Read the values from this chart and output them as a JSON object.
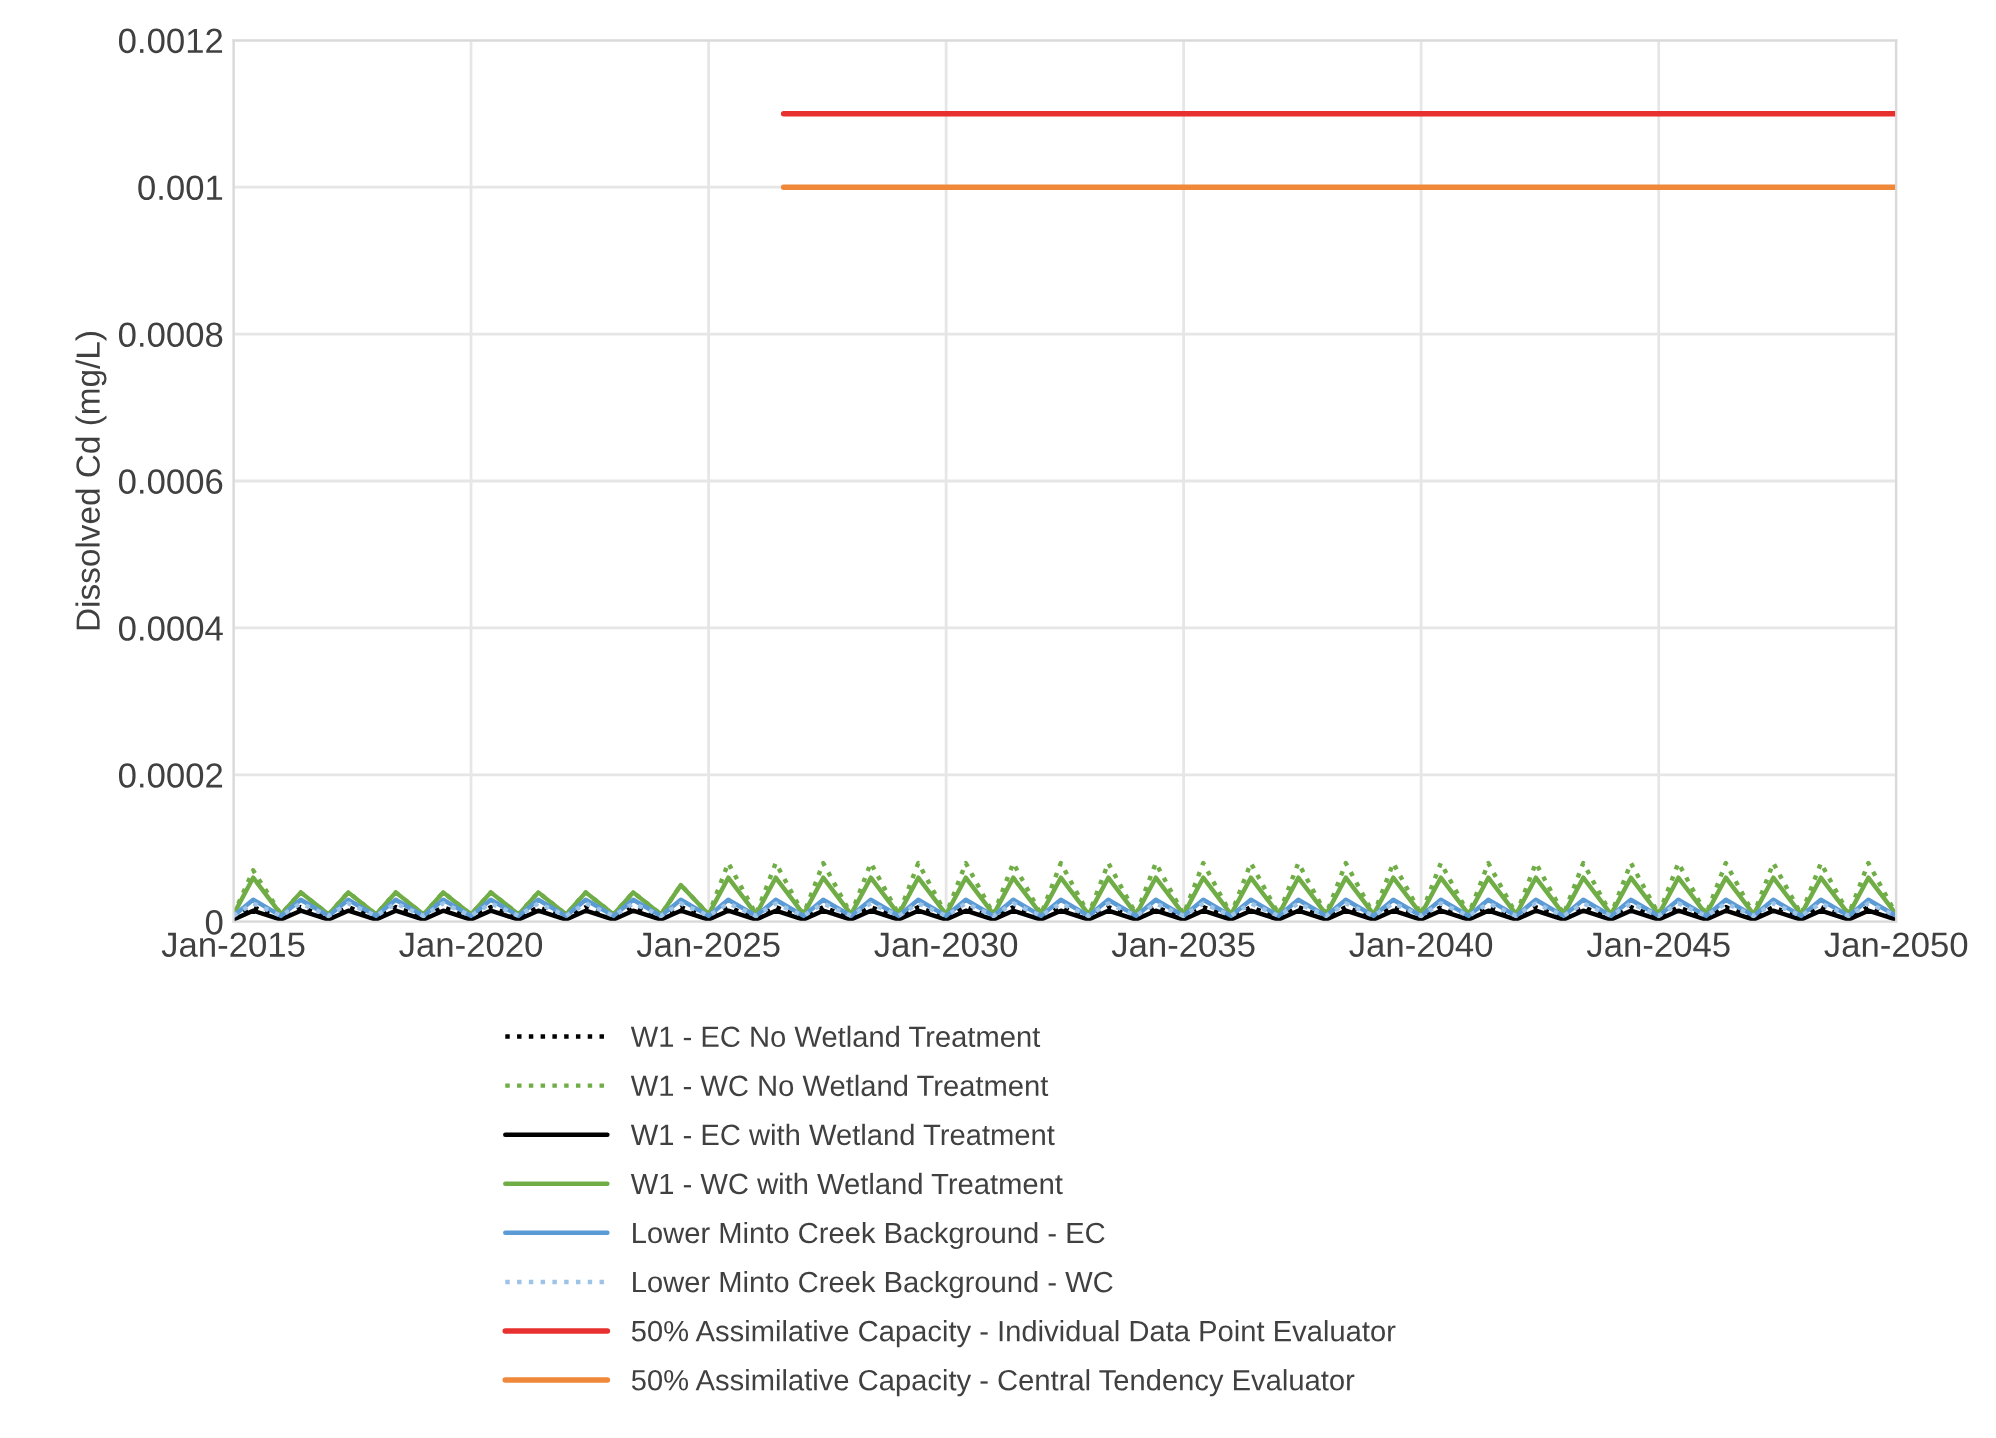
{
  "chart_data": {
    "type": "line",
    "ylabel": "Dissolved Cd (mg/L)",
    "x": [
      "2015-01",
      "2015-06",
      "2016-01",
      "2016-06",
      "2017-01",
      "2017-06",
      "2018-01",
      "2018-06",
      "2019-01",
      "2019-06",
      "2020-01",
      "2020-06",
      "2021-01",
      "2021-06",
      "2022-01",
      "2022-06",
      "2023-01",
      "2023-06",
      "2024-01",
      "2024-06",
      "2025-01",
      "2025-06",
      "2026-01",
      "2026-06",
      "2027-01",
      "2027-06",
      "2028-01",
      "2028-06",
      "2029-01",
      "2029-06",
      "2030-01",
      "2030-06",
      "2031-01",
      "2031-06",
      "2032-01",
      "2032-06",
      "2033-01",
      "2033-06",
      "2034-01",
      "2034-06",
      "2035-01",
      "2035-06",
      "2036-01",
      "2036-06",
      "2037-01",
      "2037-06",
      "2038-01",
      "2038-06",
      "2039-01",
      "2039-06",
      "2040-01",
      "2040-06",
      "2041-01",
      "2041-06",
      "2042-01",
      "2042-06",
      "2043-01",
      "2043-06",
      "2044-01",
      "2044-06",
      "2045-01",
      "2045-06",
      "2046-01",
      "2046-06",
      "2047-01",
      "2047-06",
      "2048-01",
      "2048-06",
      "2049-01",
      "2049-06",
      "2050-01"
    ],
    "series": [
      {
        "name": "W1 - EC No Wetland Treatment",
        "color": "#000000",
        "line_style": "dotted",
        "values": [
          5e-06,
          2e-05,
          5e-06,
          2e-05,
          5e-06,
          2e-05,
          5e-06,
          2e-05,
          5e-06,
          2e-05,
          5e-06,
          2e-05,
          5e-06,
          2e-05,
          5e-06,
          2e-05,
          5e-06,
          2e-05,
          5e-06,
          2e-05,
          5e-06,
          2e-05,
          5e-06,
          2e-05,
          5e-06,
          2e-05,
          5e-06,
          2e-05,
          5e-06,
          2e-05,
          5e-06,
          2e-05,
          5e-06,
          2e-05,
          5e-06,
          2e-05,
          5e-06,
          2e-05,
          5e-06,
          2e-05,
          5e-06,
          2e-05,
          5e-06,
          2e-05,
          5e-06,
          2e-05,
          5e-06,
          2e-05,
          5e-06,
          2e-05,
          5e-06,
          2e-05,
          5e-06,
          2e-05,
          5e-06,
          2e-05,
          5e-06,
          2e-05,
          5e-06,
          2e-05,
          5e-06,
          2e-05,
          5e-06,
          2e-05,
          5e-06,
          2e-05,
          5e-06,
          2e-05,
          5e-06,
          2e-05,
          5e-06
        ]
      },
      {
        "name": "W1 - WC No Wetland Treatment",
        "color": "#70ad47",
        "line_style": "dotted",
        "values": [
          1e-05,
          7e-05,
          1e-05,
          4e-05,
          1e-05,
          4e-05,
          1e-05,
          4e-05,
          1e-05,
          4e-05,
          1e-05,
          4e-05,
          1e-05,
          4e-05,
          1e-05,
          4e-05,
          1e-05,
          4e-05,
          1e-05,
          5e-05,
          1e-05,
          8e-05,
          1e-05,
          8e-05,
          1e-05,
          8e-05,
          1e-05,
          8e-05,
          1e-05,
          8e-05,
          1e-05,
          8e-05,
          1e-05,
          8e-05,
          1e-05,
          8e-05,
          1e-05,
          8e-05,
          1e-05,
          8e-05,
          1e-05,
          8e-05,
          1e-05,
          8e-05,
          1e-05,
          8e-05,
          1e-05,
          8e-05,
          1e-05,
          8e-05,
          1e-05,
          8e-05,
          1e-05,
          8e-05,
          1e-05,
          8e-05,
          1e-05,
          8e-05,
          1e-05,
          8e-05,
          1e-05,
          8e-05,
          1e-05,
          8e-05,
          1e-05,
          8e-05,
          1e-05,
          8e-05,
          1e-05,
          8e-05,
          1e-05
        ]
      },
      {
        "name": "W1 - EC with Wetland Treatment",
        "color": "#000000",
        "line_style": "solid",
        "values": [
          3e-06,
          1.5e-05,
          3e-06,
          1.5e-05,
          3e-06,
          1.5e-05,
          3e-06,
          1.5e-05,
          3e-06,
          1.5e-05,
          3e-06,
          1.5e-05,
          3e-06,
          1.5e-05,
          3e-06,
          1.5e-05,
          3e-06,
          1.5e-05,
          3e-06,
          1.5e-05,
          3e-06,
          1.5e-05,
          3e-06,
          1.5e-05,
          3e-06,
          1.5e-05,
          3e-06,
          1.5e-05,
          3e-06,
          1.5e-05,
          3e-06,
          1.5e-05,
          3e-06,
          1.5e-05,
          3e-06,
          1.5e-05,
          3e-06,
          1.5e-05,
          3e-06,
          1.5e-05,
          3e-06,
          1.5e-05,
          3e-06,
          1.5e-05,
          3e-06,
          1.5e-05,
          3e-06,
          1.5e-05,
          3e-06,
          1.5e-05,
          3e-06,
          1.5e-05,
          3e-06,
          1.5e-05,
          3e-06,
          1.5e-05,
          3e-06,
          1.5e-05,
          3e-06,
          1.5e-05,
          3e-06,
          1.5e-05,
          3e-06,
          1.5e-05,
          3e-06,
          1.5e-05,
          3e-06,
          1.5e-05,
          3e-06,
          1.5e-05,
          3e-06
        ]
      },
      {
        "name": "W1 - WC with Wetland Treatment",
        "color": "#70ad47",
        "line_style": "solid",
        "values": [
          1e-05,
          6e-05,
          1e-05,
          4e-05,
          1e-05,
          4e-05,
          1e-05,
          4e-05,
          1e-05,
          4e-05,
          1e-05,
          4e-05,
          1e-05,
          4e-05,
          1e-05,
          4e-05,
          1e-05,
          4e-05,
          1e-05,
          5e-05,
          1e-05,
          6e-05,
          1e-05,
          6e-05,
          1e-05,
          6e-05,
          1e-05,
          6e-05,
          1e-05,
          6e-05,
          1e-05,
          6e-05,
          1e-05,
          6e-05,
          1e-05,
          6e-05,
          1e-05,
          6e-05,
          1e-05,
          6e-05,
          1e-05,
          6e-05,
          1e-05,
          6e-05,
          1e-05,
          6e-05,
          1e-05,
          6e-05,
          1e-05,
          6e-05,
          1e-05,
          6e-05,
          1e-05,
          6e-05,
          1e-05,
          6e-05,
          1e-05,
          6e-05,
          1e-05,
          6e-05,
          1e-05,
          6e-05,
          1e-05,
          6e-05,
          1e-05,
          6e-05,
          1e-05,
          6e-05,
          1e-05,
          6e-05,
          1e-05
        ]
      },
      {
        "name": "Lower Minto Creek Background - EC",
        "color": "#5b9bd5",
        "line_style": "solid",
        "values": [
          8e-06,
          3e-05,
          8e-06,
          3e-05,
          8e-06,
          3e-05,
          8e-06,
          3e-05,
          8e-06,
          3e-05,
          8e-06,
          3e-05,
          8e-06,
          3e-05,
          8e-06,
          3e-05,
          8e-06,
          3e-05,
          8e-06,
          3e-05,
          8e-06,
          3e-05,
          8e-06,
          3e-05,
          8e-06,
          3e-05,
          8e-06,
          3e-05,
          8e-06,
          3e-05,
          8e-06,
          3e-05,
          8e-06,
          3e-05,
          8e-06,
          3e-05,
          8e-06,
          3e-05,
          8e-06,
          3e-05,
          8e-06,
          3e-05,
          8e-06,
          3e-05,
          8e-06,
          3e-05,
          8e-06,
          3e-05,
          8e-06,
          3e-05,
          8e-06,
          3e-05,
          8e-06,
          3e-05,
          8e-06,
          3e-05,
          8e-06,
          3e-05,
          8e-06,
          3e-05,
          8e-06,
          3e-05,
          8e-06,
          3e-05,
          8e-06,
          3e-05,
          8e-06,
          3e-05,
          8e-06,
          3e-05,
          8e-06
        ]
      },
      {
        "name": "Lower Minto Creek Background - WC",
        "color": "#9dc3e6",
        "line_style": "dotted",
        "values": [
          8e-06,
          2.5e-05,
          8e-06,
          2.5e-05,
          8e-06,
          2.5e-05,
          8e-06,
          2.5e-05,
          8e-06,
          2.5e-05,
          8e-06,
          2.5e-05,
          8e-06,
          2.5e-05,
          8e-06,
          2.5e-05,
          8e-06,
          2.5e-05,
          8e-06,
          2.5e-05,
          8e-06,
          2.5e-05,
          8e-06,
          2.5e-05,
          8e-06,
          2.5e-05,
          8e-06,
          2.5e-05,
          8e-06,
          2.5e-05,
          8e-06,
          2.5e-05,
          8e-06,
          2.5e-05,
          8e-06,
          2.5e-05,
          8e-06,
          2.5e-05,
          8e-06,
          2.5e-05,
          8e-06,
          2.5e-05,
          8e-06,
          2.5e-05,
          8e-06,
          2.5e-05,
          8e-06,
          2.5e-05,
          8e-06,
          2.5e-05,
          8e-06,
          2.5e-05,
          8e-06,
          2.5e-05,
          8e-06,
          2.5e-05,
          8e-06,
          2.5e-05,
          8e-06,
          2.5e-05,
          8e-06,
          2.5e-05,
          8e-06,
          2.5e-05,
          8e-06,
          2.5e-05,
          8e-06,
          2.5e-05,
          8e-06,
          2.5e-05,
          8e-06
        ]
      },
      {
        "name": "50% Assimilative Capacity - Individual Data Point Evaluator",
        "color": "#e8312f",
        "line_style": "solid",
        "x": [
          "2026-08",
          "2050-01"
        ],
        "values": [
          0.0011,
          0.0011
        ]
      },
      {
        "name": "50% Assimilative Capacity - Central Tendency Evaluator",
        "color": "#f0883a",
        "line_style": "solid",
        "x": [
          "2026-08",
          "2050-01"
        ],
        "values": [
          0.001,
          0.001
        ]
      }
    ],
    "xlim": [
      "2015-01",
      "2050-01"
    ],
    "xticks": [
      {
        "value": "2015-01",
        "label": "Jan-2015"
      },
      {
        "value": "2020-01",
        "label": "Jan-2020"
      },
      {
        "value": "2025-01",
        "label": "Jan-2025"
      },
      {
        "value": "2030-01",
        "label": "Jan-2030"
      },
      {
        "value": "2035-01",
        "label": "Jan-2035"
      },
      {
        "value": "2040-01",
        "label": "Jan-2040"
      },
      {
        "value": "2045-01",
        "label": "Jan-2045"
      },
      {
        "value": "2050-01",
        "label": "Jan-2050"
      }
    ],
    "ylim": [
      0,
      0.0012
    ],
    "yticks": [
      0,
      0.0002,
      0.0004,
      0.0006,
      0.0008,
      0.001,
      0.0012
    ],
    "grid": true,
    "legend": "bottom",
    "marker": "none"
  }
}
